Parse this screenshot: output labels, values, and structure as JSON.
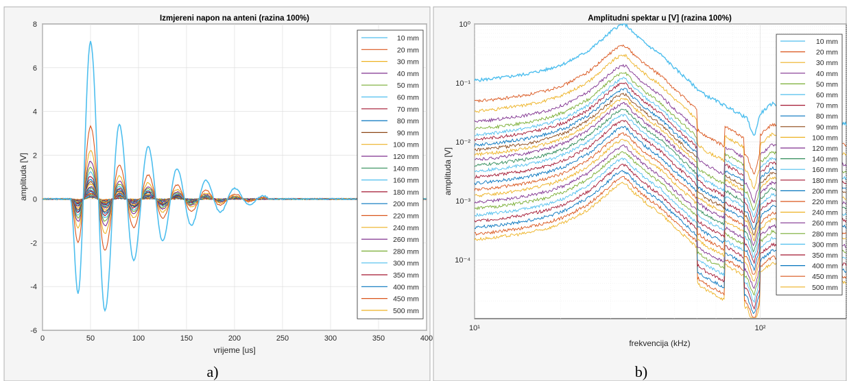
{
  "chart_data": [
    {
      "type": "line",
      "title": "Izmjereni napon na anteni (razina 100%)",
      "xlabel": "vrijeme [us]",
      "ylabel": "amplituda [V]",
      "xlim": [
        0,
        400
      ],
      "ylim": [
        -6,
        8
      ],
      "xticks": [
        "0",
        "50",
        "100",
        "150",
        "200",
        "250",
        "300",
        "350",
        "400"
      ],
      "yticks": [
        "-6",
        "-4",
        "-2",
        "0",
        "2",
        "4",
        "6",
        "8"
      ],
      "grid": true,
      "legend_position": "right",
      "legend": [
        "10 mm",
        "20 mm",
        "30 mm",
        "40 mm",
        "50 mm",
        "60 mm",
        "70 mm",
        "80 mm",
        "90 mm",
        "100 mm",
        "120 mm",
        "140 mm",
        "160 mm",
        "180 mm",
        "200 mm",
        "220 mm",
        "240 mm",
        "260 mm",
        "280 mm",
        "300 mm",
        "350 mm",
        "400 mm",
        "450 mm",
        "500 mm"
      ],
      "series_peaks": {
        "x": [
          37,
          50,
          65,
          80,
          95,
          110,
          125,
          140,
          155,
          170,
          185,
          200,
          215,
          230
        ],
        "largest_series_y": [
          -4.3,
          7.2,
          -5.1,
          3.4,
          -2.8,
          2.4,
          -1.9,
          1.4,
          -1.2,
          0.85,
          -0.6,
          0.5,
          -0.25,
          0.15
        ]
      },
      "series_scales": [
        1.0,
        0.46,
        0.31,
        0.24,
        0.2,
        0.17,
        0.145,
        0.125,
        0.11,
        0.095,
        0.08,
        0.07,
        0.06,
        0.052,
        0.045,
        0.039,
        0.034,
        0.03,
        0.026,
        0.022,
        0.017,
        0.013,
        0.01,
        0.008
      ],
      "caption": "a)"
    },
    {
      "type": "line",
      "title": "Amplitudni spektar u [V] (razina 100%)",
      "xlabel": "frekvencija (kHz)",
      "ylabel": "amplituda [V]",
      "xscale": "log",
      "yscale": "log",
      "xlim": [
        10,
        200
      ],
      "ylim": [
        1e-05,
        1
      ],
      "xticks": [
        "10¹",
        "10²"
      ],
      "yticks": [
        "10⁻⁴",
        "10⁻³",
        "10⁻²",
        "10⁻¹",
        "10⁰"
      ],
      "grid": true,
      "legend_position": "right",
      "legend": [
        "10 mm",
        "20 mm",
        "30 mm",
        "40 mm",
        "50 mm",
        "60 mm",
        "70 mm",
        "80 mm",
        "90 mm",
        "100 mm",
        "120 mm",
        "140 mm",
        "160 mm",
        "180 mm",
        "200 mm",
        "220 mm",
        "240 mm",
        "260 mm",
        "280 mm",
        "300 mm",
        "350 mm",
        "400 mm",
        "450 mm",
        "500 mm"
      ],
      "largest_series": {
        "x": [
          10,
          12,
          15,
          18,
          21,
          25,
          28,
          31,
          33,
          34,
          36,
          40,
          45,
          50,
          55,
          60,
          65,
          70,
          80,
          90,
          95,
          100,
          110,
          120,
          150,
          200
        ],
        "y": [
          0.11,
          0.12,
          0.14,
          0.17,
          0.22,
          0.35,
          0.55,
          0.85,
          1.0,
          0.95,
          0.7,
          0.45,
          0.3,
          0.18,
          0.12,
          0.08,
          0.06,
          0.05,
          0.035,
          0.025,
          0.012,
          0.03,
          0.045,
          0.04,
          0.03,
          0.02
        ]
      },
      "series_scales": [
        1.0,
        0.44,
        0.3,
        0.2,
        0.15,
        0.12,
        0.1,
        0.08,
        0.066,
        0.055,
        0.045,
        0.036,
        0.029,
        0.023,
        0.018,
        0.014,
        0.011,
        0.0085,
        0.0067,
        0.0052,
        0.0041,
        0.0032,
        0.0025,
        0.002
      ],
      "caption": "b)"
    }
  ],
  "colors": [
    "#4dbeee",
    "#d95319",
    "#edb120",
    "#7e2f8e",
    "#77ac30",
    "#4dbeee",
    "#a2142f",
    "#0072bd",
    "#8b4513",
    "#edb120",
    "#7e2f8e",
    "#2e8b57",
    "#4dbeee",
    "#a2142f",
    "#0072bd",
    "#d95319",
    "#edb120",
    "#7e2f8e",
    "#77ac30",
    "#4dbeee",
    "#a2142f",
    "#0072bd",
    "#d95319",
    "#edb120"
  ]
}
